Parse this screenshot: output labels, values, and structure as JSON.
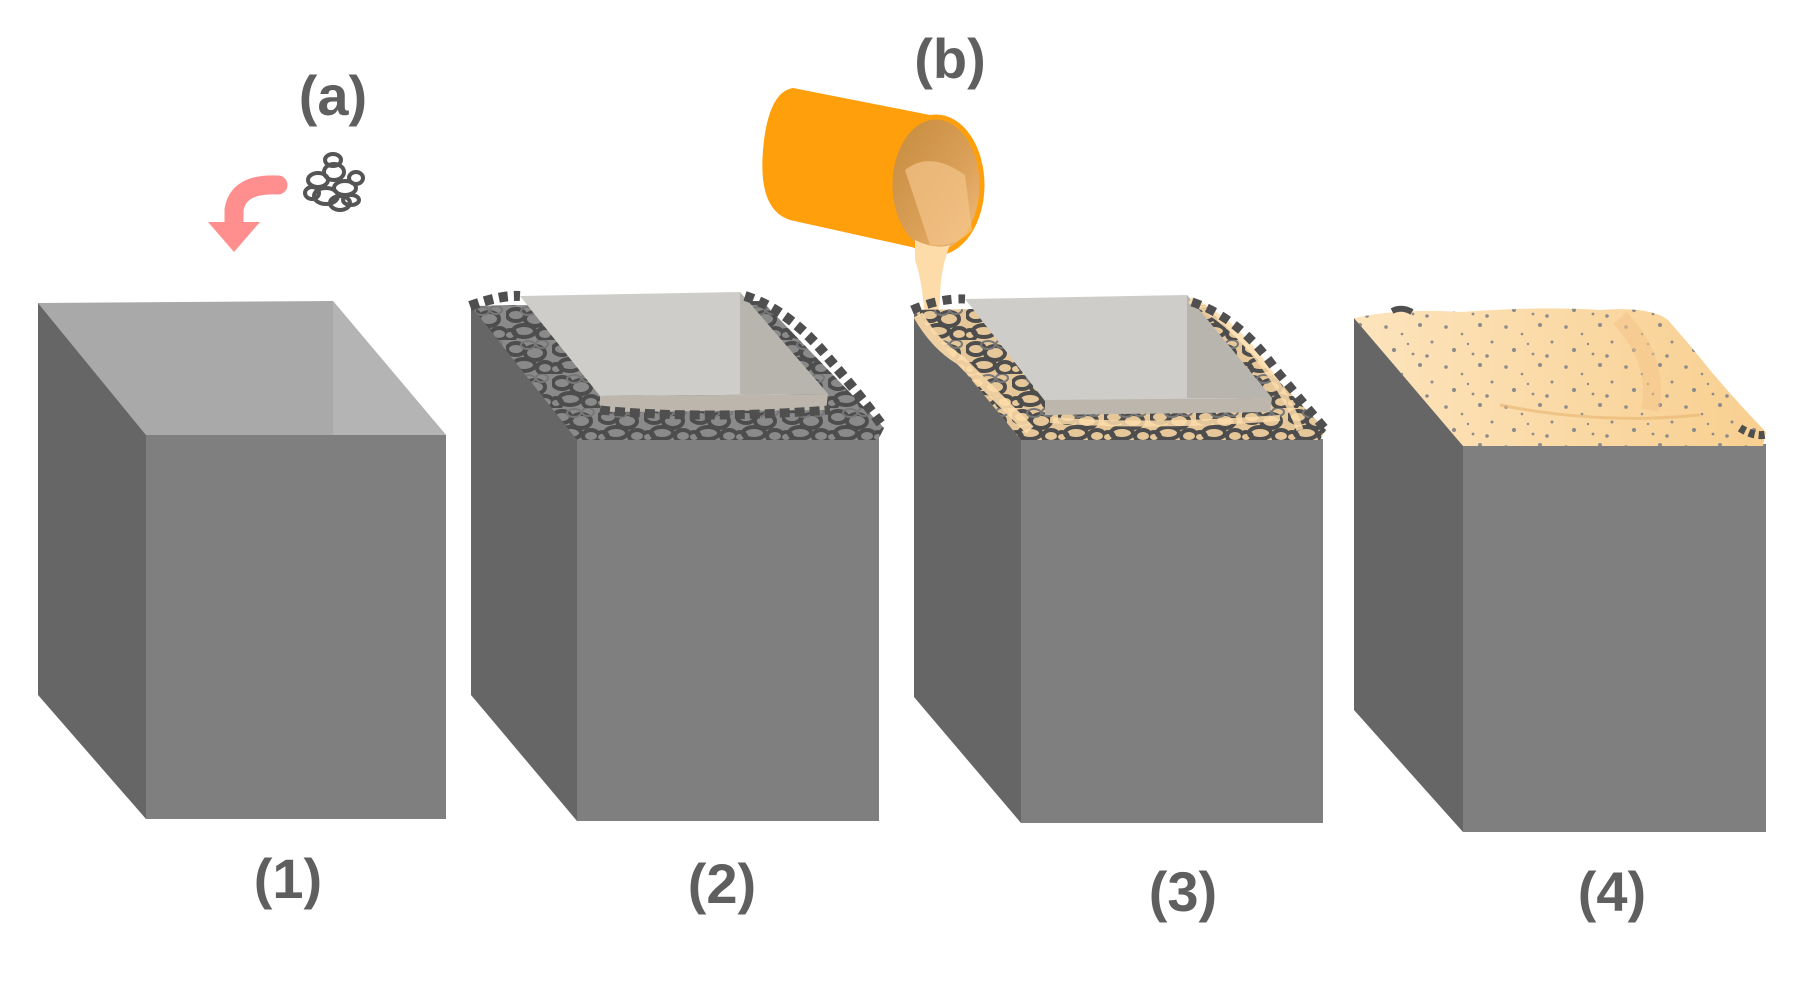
{
  "labels": {
    "stage_a": "(a)",
    "stage_b": "(b)",
    "box_1": "(1)",
    "box_2": "(2)",
    "box_3": "(3)",
    "box_4": "(4)"
  },
  "colors": {
    "box_front": "#7f7f7f",
    "box_side": "#666666",
    "box_top_empty": "#a9a9a9",
    "box_inner_light": "#cfcdca",
    "box_inner_shade": "#b8b4ae",
    "fibers": "#505050",
    "arrow": "#ff8f8f",
    "bucket_outer": "#ff9f0b",
    "bucket_inner": "#d89a4a",
    "slurry": "#fddcaa",
    "pores": "#8a8a8a",
    "label_text": "#5f5f5f"
  },
  "icons": {
    "arrow": "curved-down-arrow-icon",
    "fibers": "fiber-bundle-icon",
    "bucket": "pouring-bucket-icon"
  }
}
